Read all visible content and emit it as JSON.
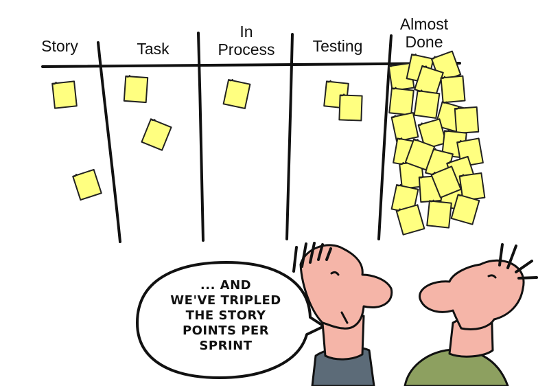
{
  "board": {
    "columns": [
      {
        "id": "story",
        "lines": [
          "Story"
        ]
      },
      {
        "id": "task",
        "lines": [
          "Task"
        ]
      },
      {
        "id": "in-process",
        "lines": [
          "In",
          "Process"
        ]
      },
      {
        "id": "testing",
        "lines": [
          "Testing"
        ]
      },
      {
        "id": "almost-done",
        "lines": [
          "Almost",
          "Done"
        ]
      }
    ],
    "note_color": "#ffff80",
    "note_outline": "#222222"
  },
  "speech_bubble": {
    "lines": [
      "... AND",
      "WE'VE TRIPLED",
      "THE STORY",
      "POINTS PER",
      "SPRINT"
    ]
  },
  "people": {
    "skin_color": "#f5b5a8",
    "left_shirt_color": "#5c6b78",
    "right_shirt_color": "#8da060"
  }
}
